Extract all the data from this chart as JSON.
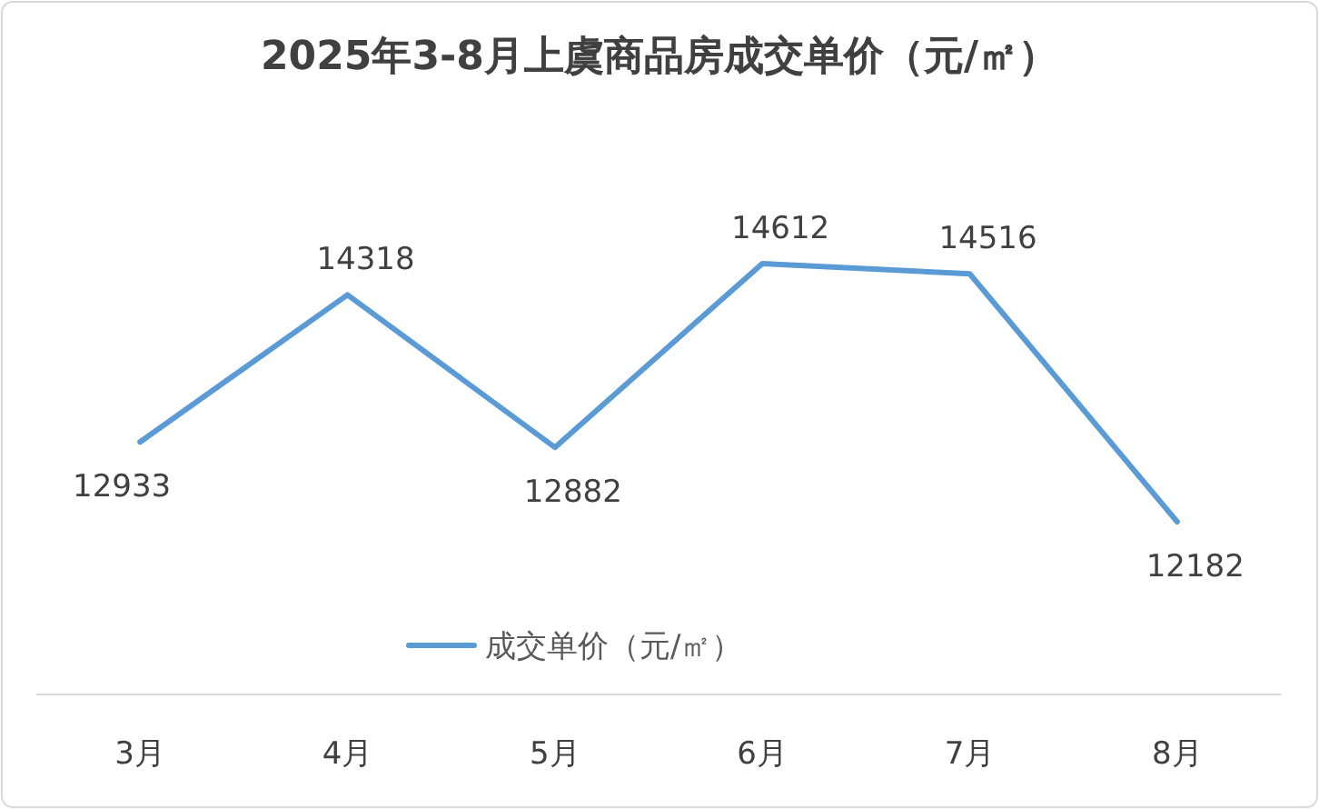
{
  "chart_data": {
    "type": "line",
    "title": "2025年3-8月上虞商品房成交单价（元/㎡）",
    "categories": [
      "3月",
      "4月",
      "5月",
      "6月",
      "7月",
      "8月"
    ],
    "series": [
      {
        "name": "成交单价（元/㎡）",
        "color": "#5b9bd5",
        "values": [
          12933,
          14318,
          12882,
          14612,
          14516,
          12182
        ]
      }
    ],
    "data_labels": true,
    "legend": "bottom",
    "marker": "none",
    "line_style": "solid"
  }
}
